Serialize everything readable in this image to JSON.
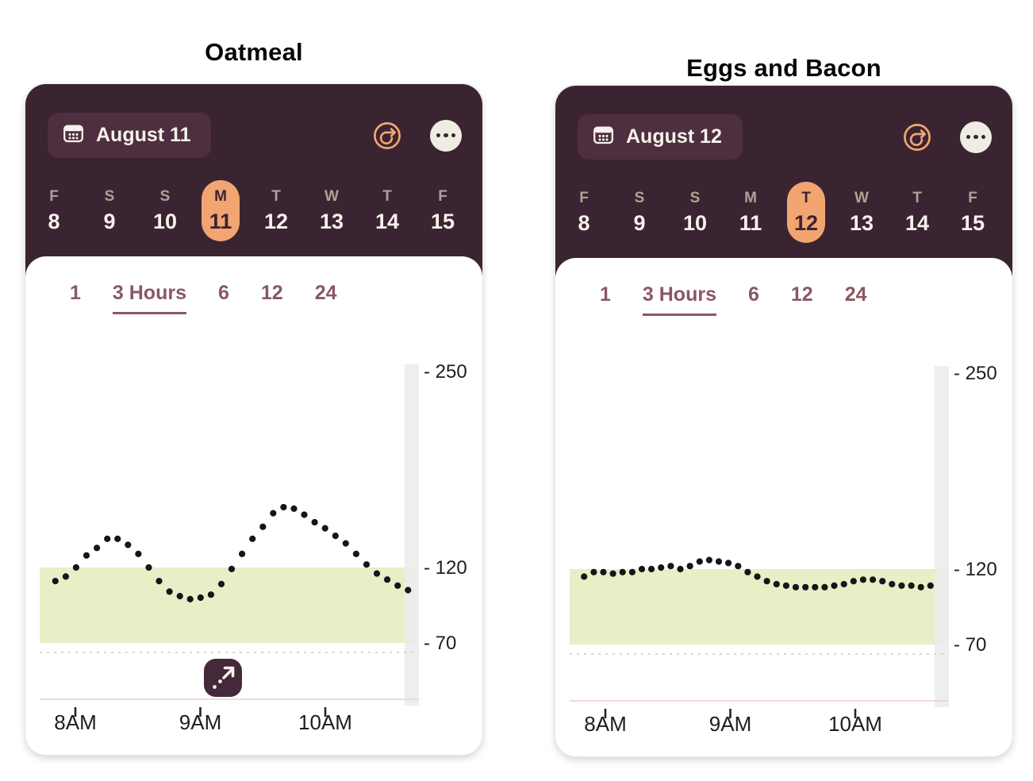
{
  "page": {
    "background": "#ffffff"
  },
  "panels": [
    {
      "title": "Oatmeal",
      "header": {
        "date_label": "August 11"
      },
      "days": [
        {
          "letter": "F",
          "num": "8",
          "selected": false
        },
        {
          "letter": "S",
          "num": "9",
          "selected": false
        },
        {
          "letter": "S",
          "num": "10",
          "selected": false
        },
        {
          "letter": "M",
          "num": "11",
          "selected": true
        },
        {
          "letter": "T",
          "num": "12",
          "selected": false
        },
        {
          "letter": "W",
          "num": "13",
          "selected": false
        },
        {
          "letter": "T",
          "num": "14",
          "selected": false
        },
        {
          "letter": "F",
          "num": "15",
          "selected": false
        }
      ],
      "tabs": [
        {
          "label": "1",
          "selected": false
        },
        {
          "label": "3 Hours",
          "selected": true
        },
        {
          "label": "6",
          "selected": false
        },
        {
          "label": "12",
          "selected": false
        },
        {
          "label": "24",
          "selected": false
        }
      ],
      "has_expand_button": true
    },
    {
      "title": "Eggs and Bacon",
      "header": {
        "date_label": "August 12"
      },
      "days": [
        {
          "letter": "F",
          "num": "8",
          "selected": false
        },
        {
          "letter": "S",
          "num": "9",
          "selected": false
        },
        {
          "letter": "S",
          "num": "10",
          "selected": false
        },
        {
          "letter": "M",
          "num": "11",
          "selected": false
        },
        {
          "letter": "T",
          "num": "12",
          "selected": true
        },
        {
          "letter": "W",
          "num": "13",
          "selected": false
        },
        {
          "letter": "T",
          "num": "14",
          "selected": false
        },
        {
          "letter": "F",
          "num": "15",
          "selected": false
        }
      ],
      "tabs": [
        {
          "label": "1",
          "selected": false
        },
        {
          "label": "3 Hours",
          "selected": true
        },
        {
          "label": "6",
          "selected": false
        },
        {
          "label": "12",
          "selected": false
        },
        {
          "label": "24",
          "selected": false
        }
      ],
      "has_expand_button": false
    }
  ],
  "chart_data": [
    {
      "type": "scatter",
      "title": "Oatmeal",
      "series_name": "glucose-readings",
      "start_hour": 7.84,
      "step_hours": 0.083,
      "values": [
        111,
        114,
        120,
        128,
        133,
        139,
        139,
        135,
        129,
        120,
        111,
        104,
        101,
        99,
        100,
        102,
        109,
        119,
        129,
        139,
        147,
        156,
        160,
        159,
        155,
        150,
        146,
        141,
        136,
        129,
        122,
        116,
        112,
        108,
        105
      ],
      "x_ticks": [
        {
          "hour": 8,
          "label": "8AM"
        },
        {
          "hour": 9,
          "label": "9AM"
        },
        {
          "hour": 10,
          "label": "10AM"
        }
      ],
      "y_ticks": [
        250,
        120,
        70
      ],
      "target_band": [
        70,
        120
      ],
      "low_threshold_line": 64,
      "ylim": [
        35,
        255
      ],
      "grid": false,
      "legend": "none"
    },
    {
      "type": "scatter",
      "title": "Eggs and Bacon",
      "series_name": "glucose-readings",
      "start_hour": 7.83,
      "step_hours": 0.077,
      "values": [
        115,
        118,
        118,
        117,
        118,
        118,
        120,
        120,
        121,
        122,
        120,
        122,
        125,
        126,
        125,
        124,
        122,
        118,
        115,
        112,
        110,
        109,
        108,
        108,
        108,
        108,
        109,
        110,
        112,
        113,
        113,
        112,
        110,
        109,
        109,
        108,
        109
      ],
      "x_ticks": [
        {
          "hour": 8,
          "label": "8AM"
        },
        {
          "hour": 9,
          "label": "9AM"
        },
        {
          "hour": 10,
          "label": "10AM"
        }
      ],
      "y_ticks": [
        250,
        120,
        70
      ],
      "target_band": [
        70,
        120
      ],
      "low_threshold_line": 64,
      "ylim": [
        35,
        255
      ],
      "grid": false,
      "legend": "none"
    }
  ],
  "colors": {
    "header_bg": "#3B2431",
    "date_pill_bg": "#4E2F3F",
    "accent_orange": "#F0A674",
    "cream": "#EFEDE3",
    "day_letter": "#B1A096",
    "day_number": "#F6F1EB",
    "tab_text": "#8A5763",
    "target_band_green": "#E6EFC6",
    "dot": "#17141A",
    "axis_label": "#1E1C22",
    "axis_line": "#EDDCD5",
    "dashed_line": "#D9C6BD",
    "scrub_bar": "#EDEDED",
    "expand_button_bg": "#452839"
  }
}
